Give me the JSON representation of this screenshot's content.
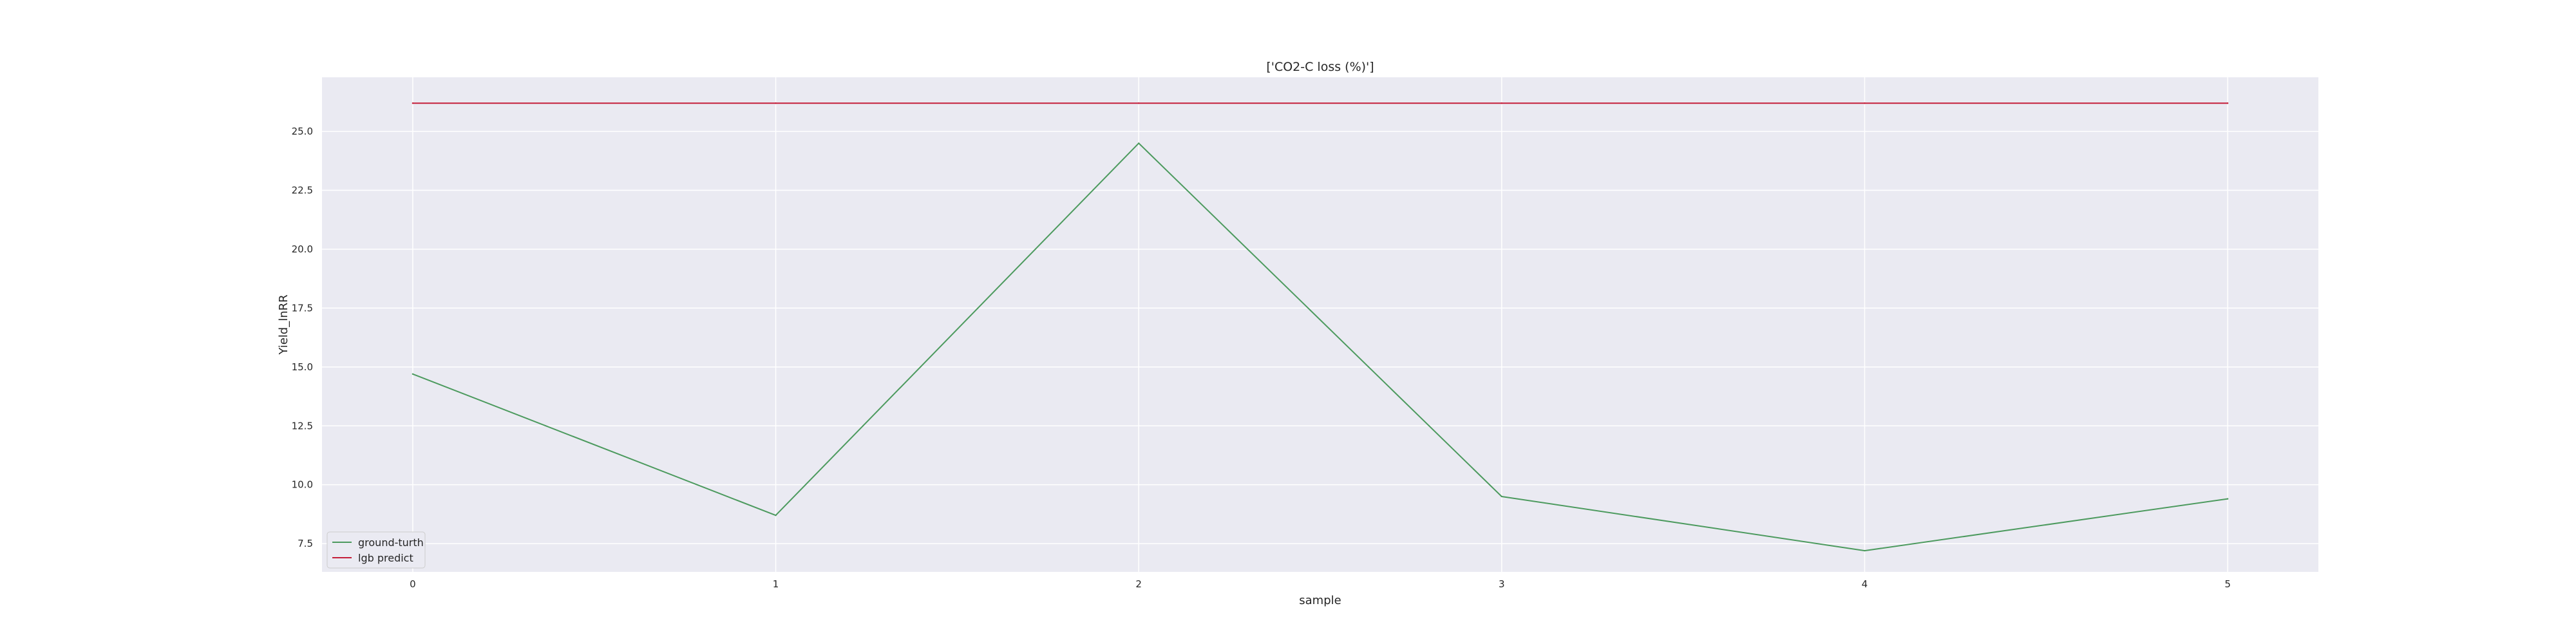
{
  "chart_data": {
    "type": "line",
    "title": "['CO2-C loss (%)']",
    "xlabel": "sample",
    "ylabel": "Yield_lnRR",
    "x": [
      0,
      1,
      2,
      3,
      4,
      5
    ],
    "xticks": [
      "0",
      "1",
      "2",
      "3",
      "4",
      "5"
    ],
    "yticks": [
      "7.5",
      "10.0",
      "12.5",
      "15.0",
      "17.5",
      "20.0",
      "22.5",
      "25.0"
    ],
    "xlim": [
      -0.25,
      5.25
    ],
    "ylim": [
      6.3,
      27.3
    ],
    "grid": true,
    "legend_position": "lower-left",
    "series": [
      {
        "name": "ground-turth",
        "color": "#4c9a5e",
        "values": [
          14.7,
          8.7,
          24.5,
          9.5,
          7.2,
          9.4
        ]
      },
      {
        "name": "lgb predict",
        "color": "#c41e3a",
        "values": [
          26.2,
          26.2,
          26.2,
          26.2,
          26.2,
          26.2
        ]
      }
    ],
    "colors": {
      "plot_background": "#eaeaf2",
      "grid": "#ffffff",
      "text": "#262626"
    }
  }
}
